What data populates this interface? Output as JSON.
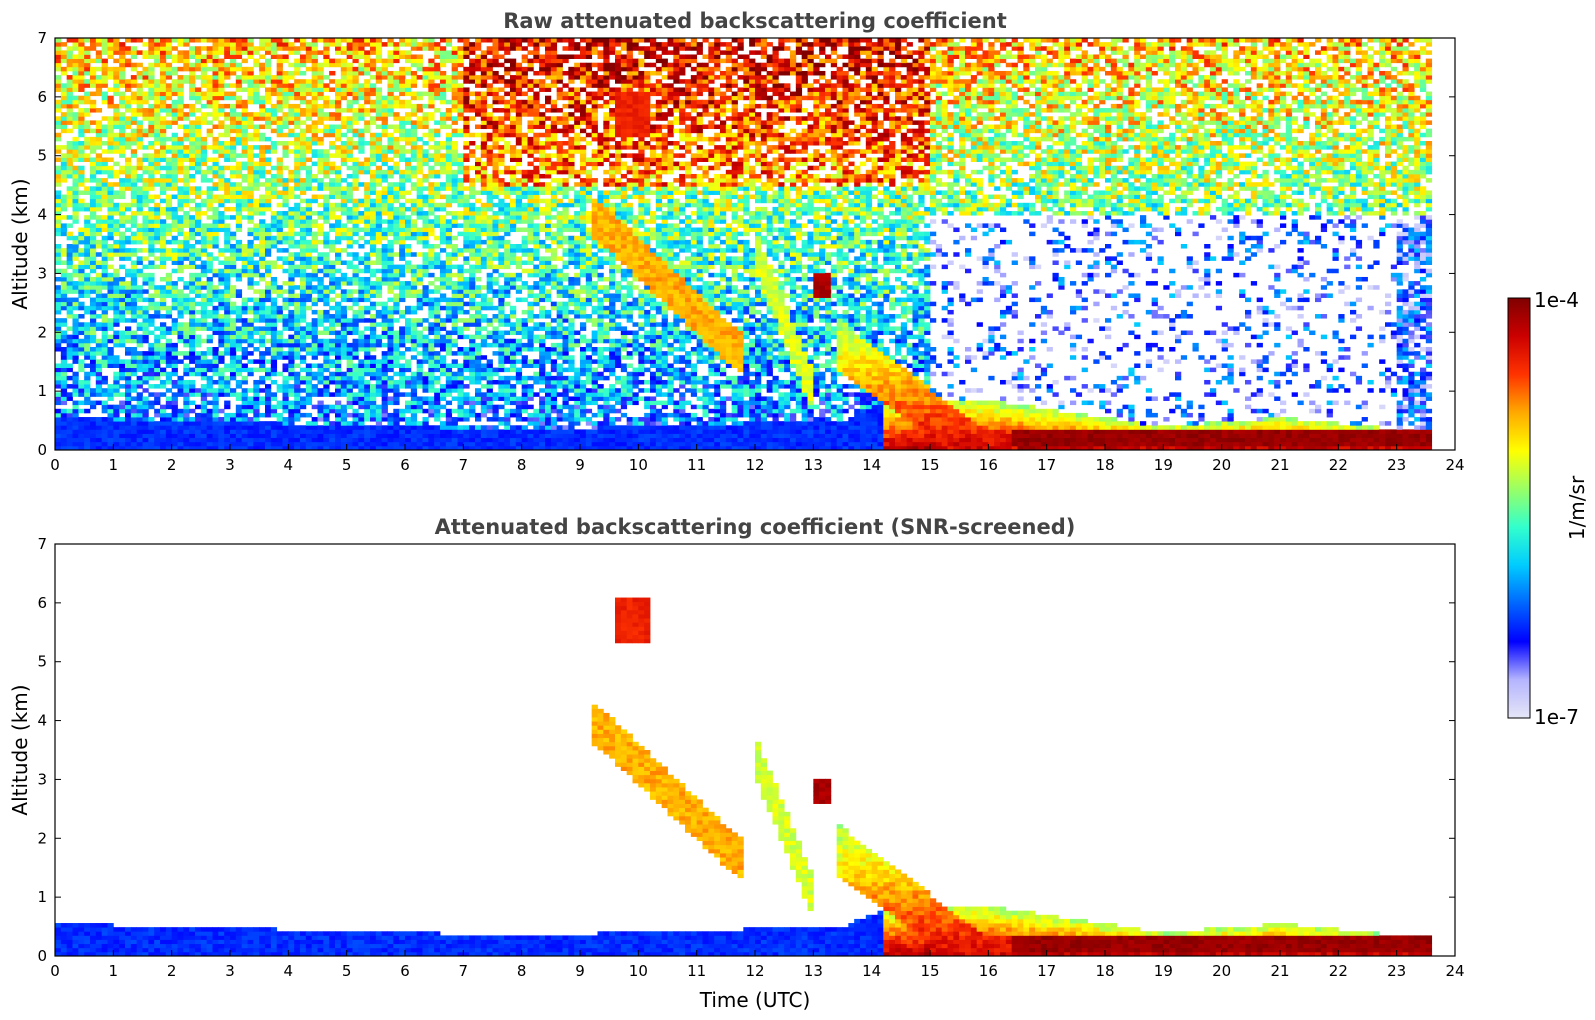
{
  "chart_data": [
    {
      "type": "heatmap",
      "title": "Raw attenuated backscattering coefficient",
      "xlabel": "",
      "ylabel": "Altitude (km)",
      "xlim": [
        0,
        24
      ],
      "ylim": [
        0,
        7
      ],
      "xticks": [
        "0",
        "1",
        "2",
        "3",
        "4",
        "5",
        "6",
        "7",
        "8",
        "9",
        "10",
        "11",
        "12",
        "13",
        "14",
        "15",
        "16",
        "17",
        "18",
        "19",
        "20",
        "21",
        "22",
        "23",
        "24"
      ],
      "yticks": [
        "0",
        "1",
        "2",
        "3",
        "4",
        "5",
        "6",
        "7"
      ],
      "data_end_time": 23.65,
      "boundary_layer_top_km": [
        {
          "x": 0,
          "y": 0.55
        },
        {
          "x": 4,
          "y": 0.45
        },
        {
          "x": 8,
          "y": 0.35
        },
        {
          "x": 13.5,
          "y": 0.5
        },
        {
          "x": 14.5,
          "y": 0.9
        },
        {
          "x": 16,
          "y": 0.85
        },
        {
          "x": 17,
          "y": 0.7
        },
        {
          "x": 19,
          "y": 0.4
        },
        {
          "x": 21,
          "y": 0.55
        },
        {
          "x": 23.6,
          "y": 0.3
        }
      ],
      "features": [
        {
          "name": "virga-streak",
          "time_start": 9.2,
          "time_end": 11.8,
          "alt_top_km": 4.0,
          "alt_bottom_km": 1.6,
          "level": 0.72
        },
        {
          "name": "precipitation-fall",
          "time_start": 12.0,
          "time_end": 13.0,
          "alt_top_km": 3.4,
          "alt_bottom_km": 1.0,
          "level": 0.6
        },
        {
          "name": "cloud-patch",
          "time_start": 13.0,
          "time_end": 13.3,
          "alt_top_km": 3.0,
          "alt_bottom_km": 2.6,
          "level": 0.95
        },
        {
          "name": "high-cloud",
          "time_start": 9.6,
          "time_end": 10.2,
          "alt_top_km": 6.1,
          "alt_bottom_km": 5.3,
          "level": 0.85
        },
        {
          "name": "cloud-base-layer",
          "time_start": 16.4,
          "time_end": 23.6,
          "alt_top_km": 0.35,
          "alt_bottom_km": 0.1,
          "level": 0.97
        }
      ]
    },
    {
      "type": "heatmap",
      "title": "Attenuated backscattering coefficient (SNR-screened)",
      "xlabel": "Time (UTC)",
      "ylabel": "Altitude (km)",
      "xlim": [
        0,
        24
      ],
      "ylim": [
        0,
        7
      ],
      "xticks": [
        "0",
        "1",
        "2",
        "3",
        "4",
        "5",
        "6",
        "7",
        "8",
        "9",
        "10",
        "11",
        "12",
        "13",
        "14",
        "15",
        "16",
        "17",
        "18",
        "19",
        "20",
        "21",
        "22",
        "23",
        "24"
      ],
      "yticks": [
        "0",
        "1",
        "2",
        "3",
        "4",
        "5",
        "6",
        "7"
      ],
      "data_end_time": 23.65,
      "screened": true
    }
  ],
  "colorbar": {
    "top_label": "1e-4",
    "bottom_label": "1e-7",
    "units": "1/m/sr",
    "colors": [
      "#e6e6f7",
      "#b4b4ff",
      "#0000ff",
      "#0066ff",
      "#00ccff",
      "#33ffcc",
      "#99ff66",
      "#ffff00",
      "#ffaa00",
      "#ff3300",
      "#cc0000",
      "#800000"
    ]
  }
}
